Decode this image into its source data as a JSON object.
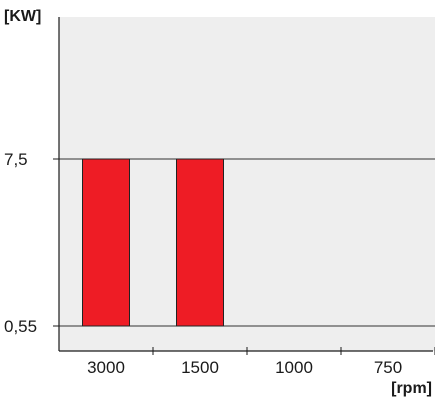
{
  "chart_data": {
    "type": "bar",
    "title": "",
    "ylabel": "[KW]",
    "xlabel": "[rpm]",
    "categories": [
      "3000",
      "1500",
      "1000",
      "750"
    ],
    "bars": [
      {
        "category": "3000",
        "from": 0.55,
        "to": 7.5
      },
      {
        "category": "1500",
        "from": 0.55,
        "to": 7.5
      }
    ],
    "y_ticks": [
      {
        "value": 0.55,
        "label": "0,55"
      },
      {
        "value": 7.5,
        "label": "7,5"
      }
    ],
    "gridlines_at": [
      0.55,
      7.5
    ],
    "grid": false,
    "legend": "none"
  },
  "colors": {
    "plot_background": "#eeeeee",
    "bar_fill": "#ee1c25",
    "axis": "#1a1a1a",
    "gridline": "#333333"
  }
}
